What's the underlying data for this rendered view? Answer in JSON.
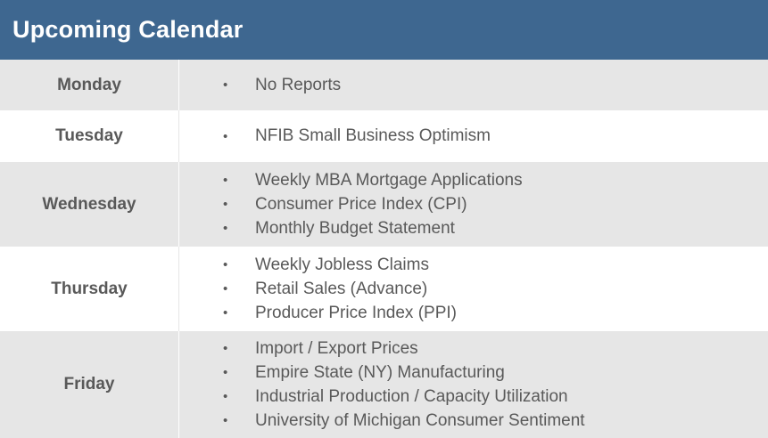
{
  "header": {
    "title": "Upcoming Calendar"
  },
  "days": [
    {
      "name": "Monday",
      "items": [
        "No Reports"
      ]
    },
    {
      "name": "Tuesday",
      "items": [
        "NFIB Small Business Optimism"
      ]
    },
    {
      "name": "Wednesday",
      "items": [
        "Weekly MBA Mortgage Applications",
        "Consumer Price Index (CPI)",
        "Monthly Budget Statement"
      ]
    },
    {
      "name": "Thursday",
      "items": [
        "Weekly Jobless Claims",
        "Retail Sales (Advance)",
        "Producer Price Index (PPI)"
      ]
    },
    {
      "name": "Friday",
      "items": [
        "Import / Export Prices",
        "Empire State (NY) Manufacturing",
        "Industrial Production / Capacity Utilization",
        "University of Michigan Consumer Sentiment"
      ]
    }
  ],
  "colors": {
    "header_bg": "#3e6790",
    "shaded_row": "#e6e6e6",
    "text": "#595959"
  },
  "icons": {
    "bullet": "bullet-icon"
  }
}
